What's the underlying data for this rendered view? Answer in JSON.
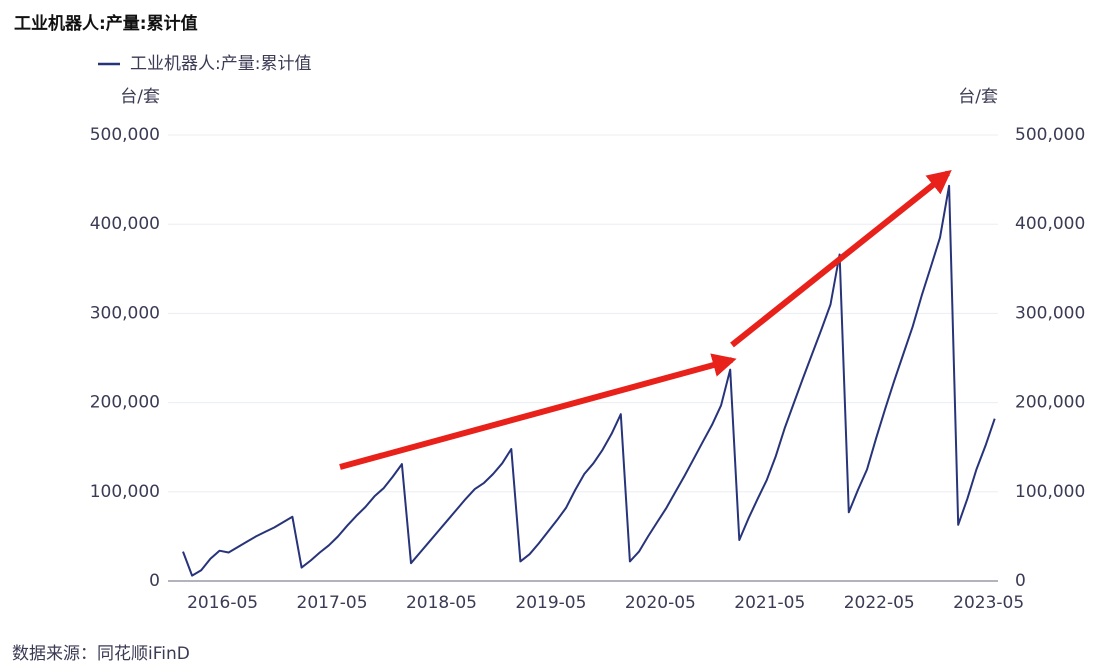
{
  "chart_data": {
    "type": "line",
    "title": "工业机器人:产量:累计值",
    "y_label": "台/套",
    "y2_label": "台/套",
    "source": "数据来源：同花顺iFinD",
    "categories": [
      null,
      null,
      null,
      null,
      null,
      "2016-05",
      null,
      null,
      null,
      null,
      null,
      null,
      null,
      null,
      null,
      null,
      null,
      "2017-05",
      null,
      null,
      null,
      null,
      null,
      null,
      null,
      null,
      null,
      null,
      null,
      "2018-05",
      null,
      null,
      null,
      null,
      null,
      null,
      null,
      null,
      null,
      null,
      null,
      "2019-05",
      null,
      null,
      null,
      null,
      null,
      null,
      null,
      null,
      null,
      null,
      null,
      "2020-05",
      null,
      null,
      null,
      null,
      null,
      null,
      null,
      null,
      null,
      null,
      null,
      "2021-05",
      null,
      null,
      null,
      null,
      null,
      null,
      null,
      null,
      null,
      null,
      null,
      "2022-05",
      null,
      null,
      null,
      null,
      null,
      null,
      null,
      null,
      null,
      null,
      null,
      "2023-05"
    ],
    "series": [
      {
        "name": "工业机器人:产量:累计值",
        "color": "#27347a",
        "values": [
          33000,
          6000,
          12000,
          25000,
          34000,
          32000,
          38000,
          44000,
          50000,
          55000,
          60000,
          66000,
          72000,
          15000,
          23000,
          32000,
          40000,
          50000,
          62000,
          73000,
          83000,
          95000,
          104000,
          117000,
          131000,
          20000,
          32000,
          44000,
          56000,
          68000,
          80000,
          92000,
          103000,
          110000,
          120000,
          132000,
          148000,
          22000,
          30000,
          42000,
          55000,
          68000,
          82000,
          102000,
          120000,
          132000,
          147000,
          165000,
          187000,
          22000,
          33000,
          50000,
          66000,
          82000,
          100000,
          118000,
          137000,
          156000,
          175000,
          197000,
          237000,
          46000,
          70000,
          92000,
          113000,
          140000,
          172000,
          200000,
          228000,
          255000,
          282000,
          310000,
          366000,
          77000,
          102000,
          125000,
          160000,
          193000,
          225000,
          255000,
          285000,
          320000,
          352000,
          385000,
          443000,
          63000,
          92000,
          125000,
          152000,
          182000
        ]
      }
    ],
    "ylim": [
      0,
      500000
    ],
    "yticks": [
      0,
      {
        "value": 100000,
        "label": "100,000"
      },
      {
        "value": 200000,
        "label": "200,000"
      },
      {
        "value": 300000,
        "label": "300,000"
      },
      {
        "value": 400000,
        "label": "400,000"
      },
      {
        "value": 500000,
        "label": "500,000"
      }
    ],
    "y2lim": [
      0,
      500000
    ],
    "y2ticks": [
      0,
      {
        "value": 100000,
        "label": "100,000"
      },
      {
        "value": 200000,
        "label": "200,000"
      },
      {
        "value": 300000,
        "label": "300,000"
      },
      {
        "value": 400000,
        "label": "400,000"
      },
      {
        "value": 500000,
        "label": "500,000"
      }
    ],
    "grid": true,
    "legend": "top-left"
  }
}
